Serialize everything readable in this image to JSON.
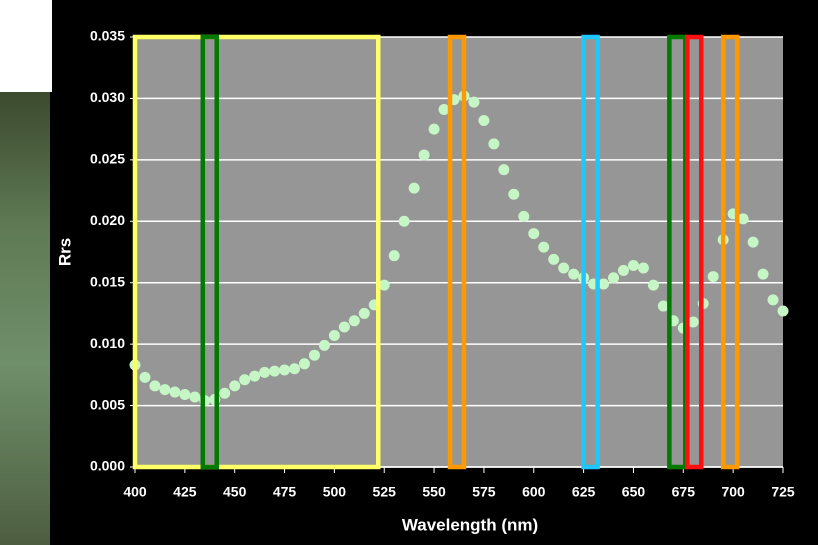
{
  "chart_data": {
    "type": "scatter",
    "x_label": "Wavelength (nm)",
    "y_label": "Rrs",
    "xlim": [
      400,
      725
    ],
    "xticks": [
      400,
      425,
      450,
      475,
      500,
      525,
      550,
      575,
      600,
      625,
      650,
      675,
      700,
      725
    ],
    "ylim": [
      0,
      0.035
    ],
    "yticks": [
      {
        "value": 0,
        "label": "0.000"
      },
      0.005,
      {
        "value": 0.01,
        "label": "0.010"
      },
      0.015,
      {
        "value": 0.02,
        "label": "0.020"
      },
      0.025,
      {
        "value": 0.03,
        "label": "0.030"
      },
      0.035
    ],
    "grid": true,
    "plot_background": "#969696",
    "series": [
      {
        "color": "#c6f5c6",
        "x": [
          400,
          405,
          410,
          415,
          420,
          425,
          430,
          435,
          440,
          445,
          450,
          455,
          460,
          465,
          470,
          475,
          480,
          485,
          490,
          495,
          500,
          505,
          510,
          515,
          520,
          525,
          530,
          535,
          540,
          545,
          550,
          555,
          560,
          565,
          570,
          575,
          580,
          585,
          590,
          595,
          600,
          605,
          610,
          615,
          620,
          625,
          630,
          635,
          640,
          645,
          650,
          655,
          660,
          665,
          670,
          675,
          680,
          685,
          690,
          695,
          700,
          705,
          710,
          715,
          720,
          725
        ],
        "values": [
          0.0083,
          0.0073,
          0.0066,
          0.0063,
          0.0061,
          0.0059,
          0.0057,
          0.0054,
          0.0055,
          0.006,
          0.0066,
          0.0071,
          0.0074,
          0.0077,
          0.0078,
          0.0079,
          0.008,
          0.0084,
          0.0091,
          0.0099,
          0.0107,
          0.0114,
          0.0119,
          0.0125,
          0.0132,
          0.0148,
          0.0172,
          0.02,
          0.0227,
          0.0254,
          0.0275,
          0.0291,
          0.0299,
          0.0302,
          0.0297,
          0.0282,
          0.0263,
          0.0242,
          0.0222,
          0.0204,
          0.019,
          0.0179,
          0.0169,
          0.0162,
          0.0157,
          0.0154,
          0.0149,
          0.0149,
          0.0154,
          0.016,
          0.0164,
          0.0162,
          0.0148,
          0.0131,
          0.0119,
          0.0113,
          0.0118,
          0.0133,
          0.0155,
          0.0185,
          0.0206,
          0.0202,
          0.0183,
          0.0157,
          0.0136,
          0.0127
        ]
      }
    ],
    "bands": [
      {
        "color": "#ffff66",
        "start": 400,
        "end": 522
      },
      {
        "color": "#007a00",
        "start": 434,
        "end": 441
      },
      {
        "color": "#ff9900",
        "start": 558,
        "end": 565
      },
      {
        "color": "#1ec8ff",
        "start": 625,
        "end": 632
      },
      {
        "color": "#007a00",
        "start": 668,
        "end": 676
      },
      {
        "color": "#ff1010",
        "start": 677,
        "end": 684
      },
      {
        "color": "#ff9900",
        "start": 695,
        "end": 702
      }
    ]
  }
}
